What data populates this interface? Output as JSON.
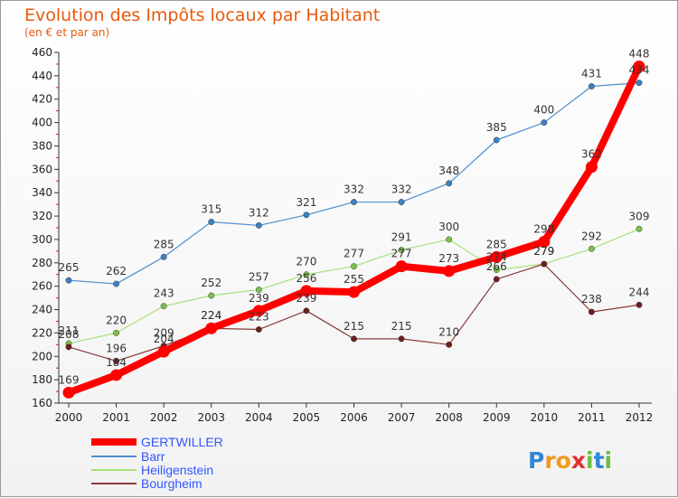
{
  "chart_data": {
    "type": "line",
    "title": "Evolution des Impôts locaux par Habitant",
    "subtitle": "(en € et par an)",
    "xlabel": "",
    "ylabel": "",
    "ylim": [
      160,
      460
    ],
    "yticks": [
      "160",
      "180",
      "200",
      "220",
      "240",
      "260",
      "280",
      "300",
      "320",
      "340",
      "360",
      "380",
      "400",
      "420",
      "440",
      "460"
    ],
    "x": [
      "2000",
      "2001",
      "2002",
      "2003",
      "2004",
      "2005",
      "2006",
      "2007",
      "2008",
      "2009",
      "2010",
      "2011",
      "2012"
    ],
    "series": [
      {
        "name": "Barr",
        "color": "#4d8fd0",
        "marker": "#3a82c4",
        "width": 1.2,
        "values": [
          265,
          262,
          285,
          315,
          312,
          321,
          332,
          332,
          348,
          385,
          400,
          431,
          434
        ],
        "labels": [
          "265",
          "262",
          "285",
          "315",
          "312",
          "321",
          "332",
          "332",
          "348",
          "385",
          "400",
          "431",
          "434"
        ]
      },
      {
        "name": "Heiligenstein",
        "color": "#a6e07a",
        "marker": "#7cc24a",
        "width": 1.2,
        "values": [
          211,
          220,
          243,
          252,
          257,
          270,
          277,
          291,
          300,
          274,
          279,
          292,
          309
        ],
        "labels": [
          "211",
          "220",
          "243",
          "252",
          "257",
          "270",
          "277",
          "291",
          "300",
          "274",
          "279",
          "292",
          "309"
        ]
      },
      {
        "name": "Bourgheim",
        "color": "#8a3a3a",
        "marker": "#6e1f1f",
        "width": 1.2,
        "values": [
          208,
          196,
          209,
          224,
          223,
          239,
          215,
          215,
          210,
          266,
          279,
          238,
          244
        ],
        "labels": [
          "208",
          "196",
          "209",
          "224",
          "223",
          "239",
          "215",
          "215",
          "210",
          "266",
          "279",
          "238",
          "244"
        ]
      },
      {
        "name": "GERTWILLER",
        "color": "#ff0000",
        "marker": "#ff0000",
        "width": 8,
        "values": [
          169,
          184,
          204,
          224,
          239,
          256,
          255,
          277,
          273,
          285,
          298,
          362,
          448
        ],
        "labels": [
          "169",
          "184",
          "204",
          "224",
          "239",
          "256",
          "255",
          "277",
          "273",
          "285",
          "298",
          "362",
          "448"
        ]
      }
    ],
    "legend": [
      "GERTWILLER",
      "Barr",
      "Heiligenstein",
      "Bourgheim"
    ],
    "legend_position": "bottom-left",
    "grid": false
  },
  "logo": {
    "text": "Proxiti",
    "letters": [
      "P",
      "r",
      "o",
      "x",
      "i",
      "t",
      "i"
    ],
    "colors": [
      "#2f86d6",
      "#f29a1b",
      "#f29a1b",
      "#e03030",
      "#6cbf3c",
      "#2f86d6",
      "#6cbf3c"
    ]
  }
}
